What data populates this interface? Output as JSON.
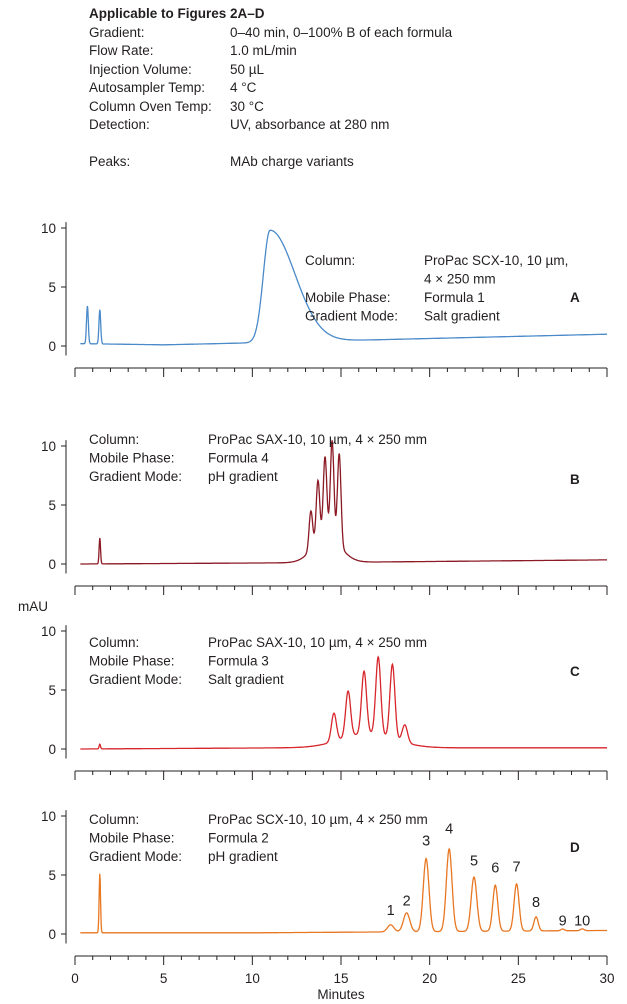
{
  "conditions": {
    "title": "Applicable to Figures 2A–D",
    "rows": [
      {
        "label": "Gradient:",
        "value": "0–40 min, 0–100% B of each formula"
      },
      {
        "label": "Flow Rate:",
        "value": "1.0 mL/min"
      },
      {
        "label": "Injection Volume:",
        "value": "50 µL"
      },
      {
        "label": "Autosampler Temp:",
        "value": "4 °C"
      },
      {
        "label": "Column Oven Temp:",
        "value": "30 °C"
      },
      {
        "label": "Detection:",
        "value": "UV, absorbance at 280 nm"
      }
    ],
    "peaks_label": "Peaks:",
    "peaks_value": "MAb charge variants"
  },
  "chart_data": {
    "type": "line",
    "ylabel": "mAU",
    "xlabel": "Minutes",
    "xlim": [
      0,
      30
    ],
    "x_ticks": [
      0,
      5,
      10,
      15,
      20,
      25,
      30
    ],
    "y_ticks": [
      0,
      5,
      10
    ],
    "panels": [
      {
        "id": "A",
        "color": "#4a8ac9",
        "info": [
          {
            "label": "Column:",
            "value": "ProPac SCX-10, 10 µm,"
          },
          {
            "label": "",
            "value": "4 × 250 mm"
          },
          {
            "label": "Mobile Phase:",
            "value": "Formula 1"
          },
          {
            "label": "Gradient Mode:",
            "value": "Salt gradient"
          }
        ],
        "baseline": [
          [
            0.3,
            0.2
          ],
          [
            5,
            0.1
          ],
          [
            8,
            0.2
          ],
          [
            30,
            1.0
          ]
        ],
        "peaks": [
          {
            "t": 0.7,
            "h": 3.2,
            "w": 0.05
          },
          {
            "t": 1.4,
            "h": 2.9,
            "w": 0.05
          },
          {
            "t": 11.0,
            "h": 9.5,
            "w": 0.38,
            "tail": 1.4
          }
        ],
        "labels": []
      },
      {
        "id": "B",
        "color": "#8b1a24",
        "info": [
          {
            "label": "Column:",
            "value": "ProPac SAX-10, 10 µm, 4 × 250 mm"
          },
          {
            "label": "Mobile Phase:",
            "value": "Formula 4"
          },
          {
            "label": "Gradient Mode:",
            "value": "pH gradient"
          }
        ],
        "baseline": [
          [
            0.3,
            0.0
          ],
          [
            12,
            0.1
          ],
          [
            30,
            0.35
          ]
        ],
        "peaks": [
          {
            "t": 1.4,
            "h": 2.2,
            "w": 0.04
          },
          {
            "t": 13.3,
            "h": 3.3,
            "w": 0.1
          },
          {
            "t": 13.7,
            "h": 5.2,
            "w": 0.1
          },
          {
            "t": 14.1,
            "h": 6.8,
            "w": 0.1
          },
          {
            "t": 14.5,
            "h": 8.3,
            "w": 0.1
          },
          {
            "t": 14.9,
            "h": 7.8,
            "w": 0.1
          },
          {
            "t": 14.2,
            "h": 2.2,
            "w": 0.75
          }
        ],
        "labels": []
      },
      {
        "id": "C",
        "color": "#d7262c",
        "info": [
          {
            "label": "Column:",
            "value": "ProPac SAX-10, 10 µm, 4 × 250 mm"
          },
          {
            "label": "Mobile Phase:",
            "value": "Formula 3"
          },
          {
            "label": "Gradient Mode:",
            "value": "Salt gradient"
          }
        ],
        "baseline": [
          [
            0.3,
            0.0
          ],
          [
            12,
            0.1
          ],
          [
            30,
            0.1
          ]
        ],
        "peaks": [
          {
            "t": 1.4,
            "h": 0.4,
            "w": 0.04
          },
          {
            "t": 14.6,
            "h": 2.4,
            "w": 0.14
          },
          {
            "t": 15.4,
            "h": 3.9,
            "w": 0.14
          },
          {
            "t": 16.3,
            "h": 5.3,
            "w": 0.14
          },
          {
            "t": 17.1,
            "h": 6.6,
            "w": 0.14
          },
          {
            "t": 17.9,
            "h": 6.3,
            "w": 0.14
          },
          {
            "t": 18.6,
            "h": 1.5,
            "w": 0.15
          },
          {
            "t": 16.5,
            "h": 1.2,
            "w": 1.5
          }
        ],
        "labels": []
      },
      {
        "id": "D",
        "color": "#e87722",
        "info": [
          {
            "label": "Column:",
            "value": "ProPac SCX-10, 10 µm, 4 × 250 mm"
          },
          {
            "label": "Mobile Phase:",
            "value": "Formula 2"
          },
          {
            "label": "Gradient Mode:",
            "value": "pH gradient"
          }
        ],
        "baseline": [
          [
            0.3,
            0.1
          ],
          [
            10,
            0.1
          ],
          [
            30,
            0.3
          ]
        ],
        "peaks": [
          {
            "t": 1.4,
            "h": 5.0,
            "w": 0.04
          },
          {
            "t": 17.8,
            "h": 0.6,
            "w": 0.18
          },
          {
            "t": 18.7,
            "h": 1.6,
            "w": 0.18
          },
          {
            "t": 19.8,
            "h": 6.2,
            "w": 0.16
          },
          {
            "t": 21.1,
            "h": 7.0,
            "w": 0.16
          },
          {
            "t": 22.5,
            "h": 4.6,
            "w": 0.16
          },
          {
            "t": 23.7,
            "h": 3.9,
            "w": 0.14
          },
          {
            "t": 24.9,
            "h": 4.0,
            "w": 0.14
          },
          {
            "t": 26.0,
            "h": 1.2,
            "w": 0.12
          },
          {
            "t": 27.5,
            "h": 0.15,
            "w": 0.1
          },
          {
            "t": 28.6,
            "h": 0.15,
            "w": 0.1
          }
        ],
        "labels": [
          {
            "text": "1",
            "t": 17.8,
            "y": 1.6
          },
          {
            "text": "2",
            "t": 18.7,
            "y": 2.4
          },
          {
            "text": "3",
            "t": 19.8,
            "y": 7.5
          },
          {
            "text": "4",
            "t": 21.1,
            "y": 8.5
          },
          {
            "text": "5",
            "t": 22.5,
            "y": 5.8
          },
          {
            "text": "6",
            "t": 23.7,
            "y": 5.2
          },
          {
            "text": "7",
            "t": 24.9,
            "y": 5.3
          },
          {
            "text": "8",
            "t": 26.0,
            "y": 2.3
          },
          {
            "text": "9",
            "t": 27.5,
            "y": 0.7
          },
          {
            "text": "10",
            "t": 28.6,
            "y": 0.7
          }
        ]
      }
    ]
  }
}
